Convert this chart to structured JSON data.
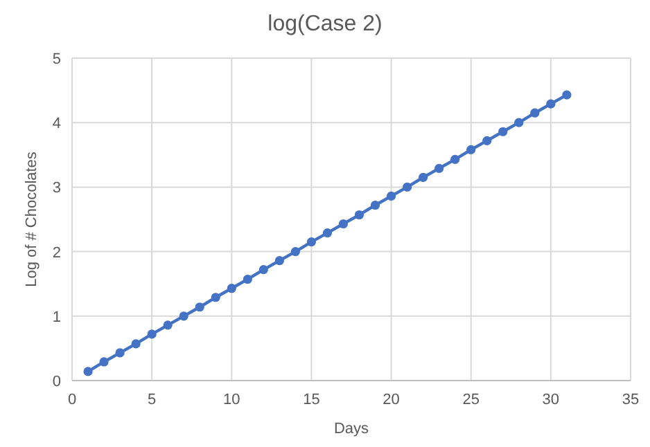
{
  "chart_data": {
    "type": "line",
    "title": "log(Case 2)",
    "xlabel": "Days",
    "ylabel": "Log of # Chocolates",
    "x": [
      1,
      2,
      3,
      4,
      5,
      6,
      7,
      8,
      9,
      10,
      11,
      12,
      13,
      14,
      15,
      16,
      17,
      18,
      19,
      20,
      21,
      22,
      23,
      24,
      25,
      26,
      27,
      28,
      29,
      30,
      31
    ],
    "series": [
      {
        "color": "#4472c4",
        "values": [
          0.14,
          0.29,
          0.43,
          0.57,
          0.72,
          0.86,
          1.0,
          1.14,
          1.29,
          1.43,
          1.57,
          1.72,
          1.86,
          2.0,
          2.15,
          2.29,
          2.43,
          2.57,
          2.72,
          2.86,
          3.0,
          3.15,
          3.29,
          3.43,
          3.58,
          3.72,
          3.86,
          4.0,
          4.15,
          4.29,
          4.43
        ]
      }
    ],
    "xlim": [
      0,
      35
    ],
    "xticks": [
      0,
      5,
      10,
      15,
      20,
      25,
      30,
      35
    ],
    "ylim": [
      0,
      5
    ],
    "yticks": [
      0,
      1,
      2,
      3,
      4,
      5
    ],
    "grid": true,
    "marker": "circle",
    "line_style": "solid"
  }
}
